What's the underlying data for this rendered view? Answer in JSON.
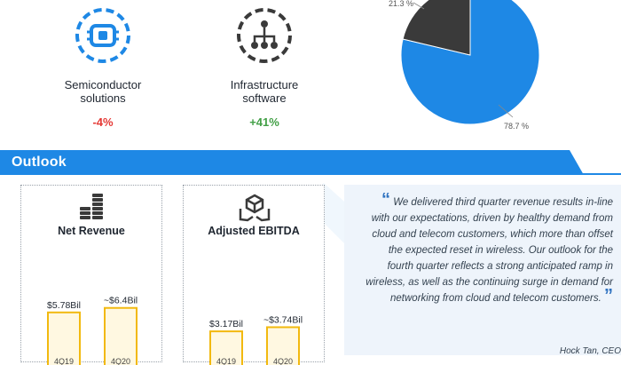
{
  "segments": [
    {
      "name_line1": "Semiconductor",
      "name_line2": "solutions",
      "change": "-4%",
      "change_color": "#e53935",
      "icon": "chip-icon"
    },
    {
      "name_line1": "Infrastructure",
      "name_line2": "software",
      "change": "+41%",
      "change_color": "#43a047",
      "icon": "network-icon"
    }
  ],
  "outlook": {
    "title": "Outlook"
  },
  "cards": {
    "revenue": {
      "title": "Net Revenue",
      "icon": "coin-stack-icon",
      "chart_ref": 0
    },
    "ebitda": {
      "title": "Adjusted EBITDA",
      "icon": "hands-box-icon",
      "chart_ref": 1
    }
  },
  "quote": {
    "open_mark": "“",
    "close_mark": "”",
    "text": "We delivered third quarter revenue results in-line with our expectations, driven by healthy demand from cloud and telecom customers, which more than offset the expected reset in wireless. Our outlook for the fourth quarter reflects a strong anticipated ramp in wireless, as well as the continuing surge in demand for networking from cloud and telecom customers.",
    "attribution": "Hock Tan, CEO"
  },
  "colors": {
    "brand_blue": "#1e88e5",
    "dark_grey": "#3a3a3a",
    "bar_fill": "#fff8e1",
    "bar_stroke": "#f2b90f",
    "banner_blue": "#1e88e5"
  },
  "chart_data": [
    {
      "type": "pie",
      "slices": [
        {
          "label": "78.7 %",
          "value": 78.7,
          "color": "#1e88e5"
        },
        {
          "label": "21.3 %",
          "value": 21.3,
          "color": "#3a3a3a"
        }
      ]
    },
    {
      "type": "bar",
      "title": "Net Revenue",
      "categories": [
        "4Q19",
        "4Q20"
      ],
      "values": [
        5.78,
        6.4
      ],
      "value_labels": [
        "$5.78Bil",
        "~$6.4Bil"
      ]
    },
    {
      "type": "bar",
      "title": "Adjusted EBITDA",
      "categories": [
        "4Q19",
        "4Q20"
      ],
      "values": [
        3.17,
        3.74
      ],
      "value_labels": [
        "$3.17Bil",
        "~$3.74Bil"
      ]
    }
  ]
}
